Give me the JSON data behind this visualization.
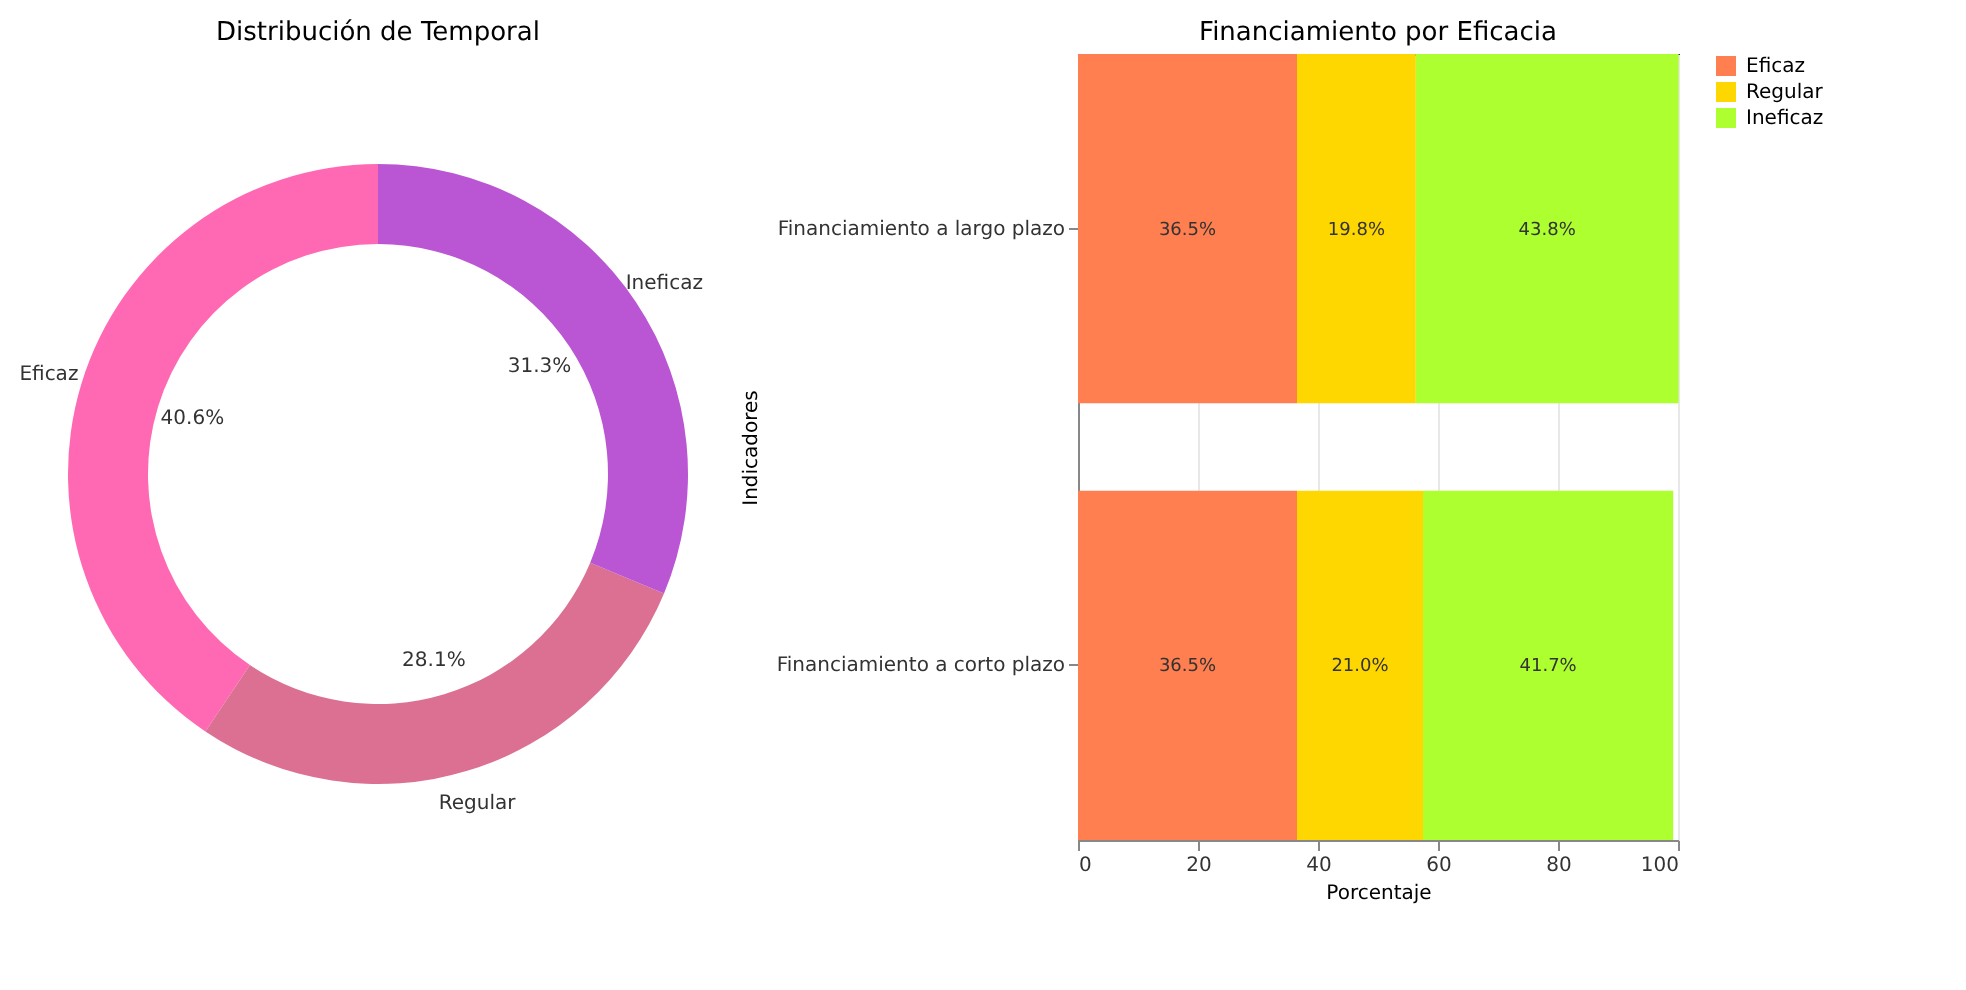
{
  "chart_data": [
    {
      "type": "donut",
      "title": "Distribución de Temporal",
      "categories": [
        "Eficaz",
        "Regular",
        "Ineficaz"
      ],
      "values": [
        40.6,
        28.1,
        31.3
      ],
      "colors": [
        "#ff69b4",
        "#db7093",
        "#ba55d3"
      ],
      "value_labels": [
        "40.6%",
        "28.1%",
        "31.3%"
      ]
    },
    {
      "type": "bar",
      "orientation": "horizontal",
      "stacked": true,
      "title": "Financiamiento por Eficacia",
      "xlabel": "Porcentaje",
      "ylabel": "Indicadores",
      "categories": [
        "Financiamiento a largo plazo",
        "Financiamiento a corto plazo"
      ],
      "series": [
        {
          "name": "Eficaz",
          "color": "#ff7f50",
          "values": [
            36.5,
            36.5
          ],
          "value_labels": [
            "36.5%",
            "36.5%"
          ]
        },
        {
          "name": "Regular",
          "color": "#ffd700",
          "values": [
            19.8,
            21.0
          ],
          "value_labels": [
            "19.8%",
            "21.0%"
          ]
        },
        {
          "name": "Ineficaz",
          "color": "#adff2f",
          "values": [
            43.8,
            41.7
          ],
          "value_labels": [
            "43.8%",
            "41.7%"
          ]
        }
      ],
      "xlim": [
        0,
        100
      ],
      "xticks": [
        0,
        20,
        40,
        60,
        80,
        100
      ],
      "grid": "x",
      "legend": "right"
    }
  ]
}
